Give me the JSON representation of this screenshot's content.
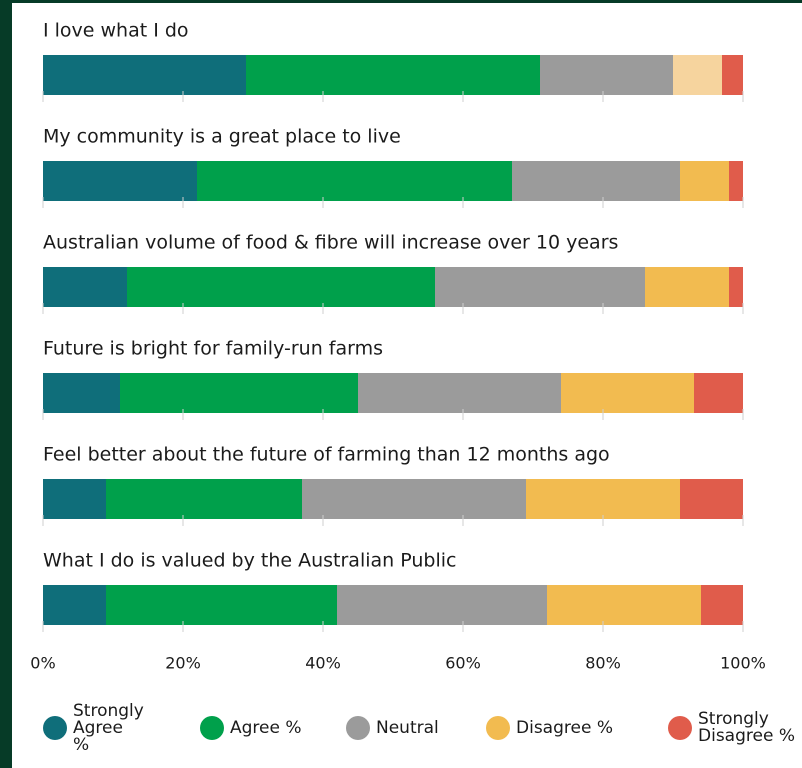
{
  "chart_data": {
    "type": "stacked-bar-horizontal",
    "categories": [
      "I love what I do",
      "My community is a great place to live",
      "Australian volume of food & fibre will increase over 10 years",
      "Future is bright for family-run farms",
      "Feel better about the future of farming than 12 months ago",
      "What I do is valued by the Australian Public"
    ],
    "series": [
      {
        "name": "Strongly Agree %",
        "color": "#0f6e7a",
        "values": [
          29,
          22,
          12,
          11,
          9,
          9
        ]
      },
      {
        "name": "Agree %",
        "color": "#00a04b",
        "values": [
          42,
          45,
          44,
          34,
          28,
          33
        ]
      },
      {
        "name": "Neutral",
        "color": "#9b9b9b",
        "values": [
          19,
          24,
          30,
          29,
          32,
          30
        ]
      },
      {
        "name": "Disagree %",
        "color": "#f2bb50",
        "colors": [
          "#f6d49e",
          "#f2bb50",
          "#f2bb50",
          "#f2bb50",
          "#f2bb50",
          "#f2bb50"
        ],
        "values": [
          7,
          7,
          12,
          19,
          22,
          22
        ]
      },
      {
        "name": "Strongly Disagree %",
        "color": "#e05c4b",
        "values": [
          3,
          2,
          2,
          7,
          9,
          6
        ]
      }
    ],
    "xlim": [
      0,
      100
    ],
    "xticks": [
      {
        "value": 0,
        "label": "0%"
      },
      {
        "value": 20,
        "label": "20%"
      },
      {
        "value": 40,
        "label": "40%"
      },
      {
        "value": 60,
        "label": "60%"
      },
      {
        "value": 80,
        "label": "80%"
      },
      {
        "value": 100,
        "label": "100%"
      }
    ],
    "legend": "bottom"
  }
}
